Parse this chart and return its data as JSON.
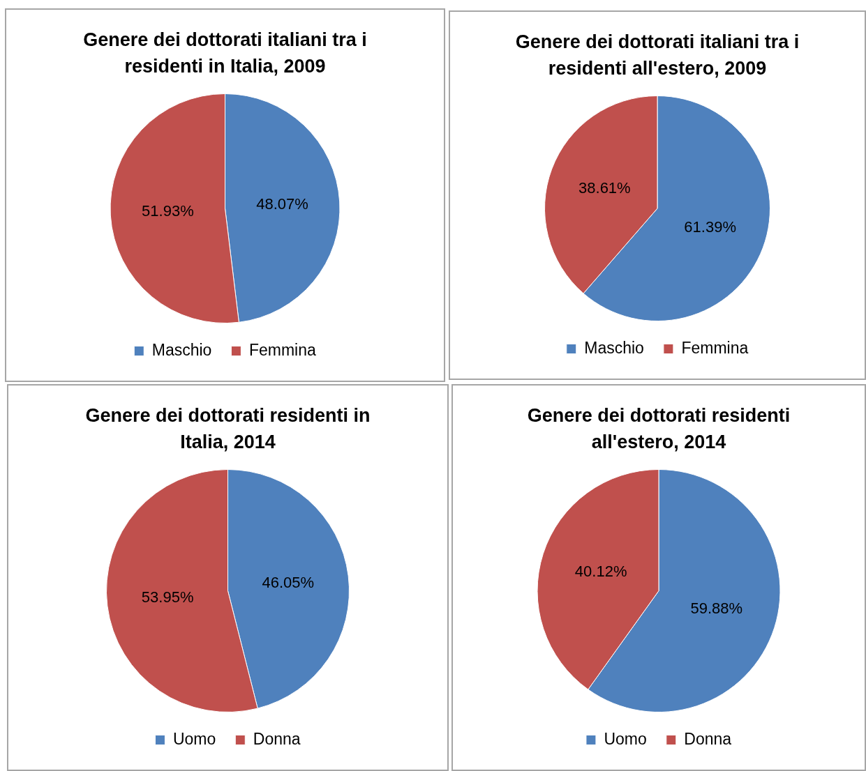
{
  "chart_data": [
    {
      "type": "pie",
      "title": "Genere dei dottorati italiani tra i residenti in Italia, 2009",
      "categories": [
        "Maschio",
        "Femmina"
      ],
      "values": [
        48.07,
        51.93
      ],
      "colors": [
        "#4f81bd",
        "#c0504d"
      ],
      "value_labels": [
        "48.07%",
        "51.93%"
      ],
      "legend": "bottom"
    },
    {
      "type": "pie",
      "title": "Genere dei dottorati italiani tra i residenti all'estero, 2009",
      "categories": [
        "Maschio",
        "Femmina"
      ],
      "values": [
        61.39,
        38.61
      ],
      "colors": [
        "#4f81bd",
        "#c0504d"
      ],
      "value_labels": [
        "61.39%",
        "38.61%"
      ],
      "legend": "bottom"
    },
    {
      "type": "pie",
      "title": "Genere dei dottorati residenti in Italia, 2014",
      "categories": [
        "Uomo",
        "Donna"
      ],
      "values": [
        46.05,
        53.95
      ],
      "colors": [
        "#4f81bd",
        "#c0504d"
      ],
      "value_labels": [
        "46.05%",
        "53.95%"
      ],
      "legend": "bottom"
    },
    {
      "type": "pie",
      "title": "Genere dei dottorati residenti all'estero, 2014",
      "categories": [
        "Uomo",
        "Donna"
      ],
      "values": [
        59.88,
        40.12
      ],
      "colors": [
        "#4f81bd",
        "#c0504d"
      ],
      "value_labels": [
        "59.88%",
        "40.12%"
      ],
      "legend": "bottom"
    }
  ]
}
